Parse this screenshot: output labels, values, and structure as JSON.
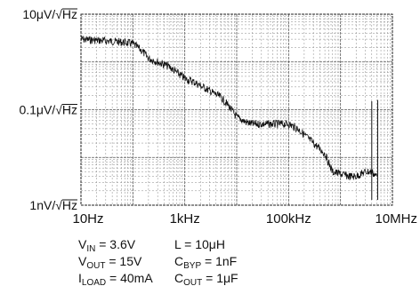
{
  "chart_data": {
    "type": "line",
    "title": "",
    "xlabel": "",
    "ylabel": "",
    "x_scale": "log",
    "y_scale": "log",
    "x_unit": "Hz",
    "y_unit": "V/√Hz",
    "xlim": [
      10,
      10000000
    ],
    "ylim": [
      1e-09,
      1e-05
    ],
    "grid": true,
    "y_ticks": [
      {
        "value": 1e-05,
        "label": "10μV/√Hz"
      },
      {
        "value": 1e-07,
        "label": "0.1μV/√Hz"
      },
      {
        "value": 1e-09,
        "label": "1nV/√Hz"
      }
    ],
    "x_ticks": [
      {
        "value": 10,
        "label": "10Hz"
      },
      {
        "value": 1000,
        "label": "1kHz"
      },
      {
        "value": 100000,
        "label": "100kHz"
      },
      {
        "value": 10000000,
        "label": "10MHz"
      }
    ],
    "series": [
      {
        "name": "",
        "color": "#111111",
        "x": [
          10,
          15,
          25,
          40,
          60,
          100,
          150,
          200,
          300,
          500,
          700,
          1000,
          1500,
          2000,
          3000,
          5000,
          7000,
          10000,
          15000,
          20000,
          30000,
          50000,
          70000,
          100000,
          150000,
          200000,
          300000,
          500000,
          700000,
          1000000,
          1500000,
          2000000,
          3000000,
          4000000,
          5000000
        ],
        "y": [
          3e-06,
          2.9e-06,
          2.8e-06,
          2.7e-06,
          2.6e-06,
          2.4e-06,
          1.7e-06,
          1.2e-06,
          1e-06,
          8e-07,
          6e-07,
          4.5e-07,
          3.8e-07,
          3.2e-07,
          2.5e-07,
          1.8e-07,
          1.2e-07,
          7e-08,
          5.5e-08,
          5e-08,
          5e-08,
          5e-08,
          5e-08,
          5e-08,
          4e-08,
          3e-08,
          2e-08,
          1.2e-08,
          5e-09,
          4.5e-09,
          4e-09,
          4e-09,
          5e-09,
          5e-09,
          4e-09
        ]
      }
    ],
    "spikes": [
      {
        "x": 4000000,
        "y": 1.5e-07
      },
      {
        "x": 5200000,
        "y": 1.6e-07
      }
    ],
    "annotations": [
      {
        "id": "vin",
        "parts": [
          {
            "t": "V"
          },
          {
            "t": "IN",
            "sub": true
          },
          {
            "t": " = 3.6V"
          }
        ]
      },
      {
        "id": "vout",
        "parts": [
          {
            "t": "V"
          },
          {
            "t": "OUT",
            "sub": true
          },
          {
            "t": " = 15V"
          }
        ]
      },
      {
        "id": "iload",
        "parts": [
          {
            "t": "I"
          },
          {
            "t": "LOAD",
            "sub": true
          },
          {
            "t": " = 40mA"
          }
        ]
      },
      {
        "id": "l",
        "parts": [
          {
            "t": "L = 10μH"
          }
        ]
      },
      {
        "id": "cbyp",
        "parts": [
          {
            "t": "C"
          },
          {
            "t": "BYP",
            "sub": true
          },
          {
            "t": " = 1nF"
          }
        ]
      },
      {
        "id": "cout",
        "parts": [
          {
            "t": "C"
          },
          {
            "t": "OUT",
            "sub": true
          },
          {
            "t": " = 1μF"
          }
        ]
      }
    ]
  }
}
